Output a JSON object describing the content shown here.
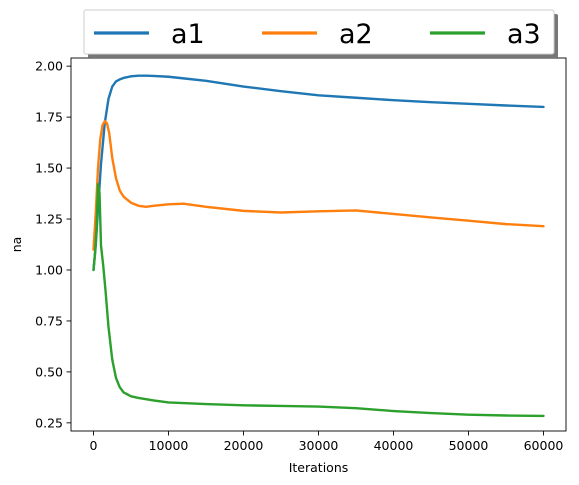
{
  "chart_data": {
    "type": "line",
    "xlabel": "Iterations",
    "ylabel": "na",
    "xlim": [
      -3000,
      63000
    ],
    "ylim": [
      0.21,
      2.04
    ],
    "xticks": [
      0,
      10000,
      20000,
      30000,
      40000,
      50000,
      60000
    ],
    "xtick_labels": [
      "0",
      "10000",
      "20000",
      "30000",
      "40000",
      "50000",
      "60000"
    ],
    "yticks": [
      0.25,
      0.5,
      0.75,
      1.0,
      1.25,
      1.5,
      1.75,
      2.0
    ],
    "ytick_labels": [
      "0.25",
      "0.50",
      "0.75",
      "1.00",
      "1.25",
      "1.50",
      "1.75",
      "2.00"
    ],
    "grid": false,
    "legend_position": "top, above plot, 3 columns",
    "series": [
      {
        "name": "a1",
        "color": "#1f77b4",
        "x": [
          0,
          300,
          600,
          1000,
          1500,
          2000,
          2500,
          3000,
          3500,
          4000,
          5000,
          6000,
          7000,
          8000,
          10000,
          12000,
          15000,
          20000,
          25000,
          30000,
          35000,
          40000,
          45000,
          50000,
          55000,
          60000
        ],
        "y": [
          1.0,
          1.12,
          1.3,
          1.52,
          1.72,
          1.84,
          1.9,
          1.925,
          1.935,
          1.942,
          1.95,
          1.953,
          1.953,
          1.952,
          1.948,
          1.94,
          1.928,
          1.9,
          1.877,
          1.857,
          1.845,
          1.833,
          1.823,
          1.815,
          1.807,
          1.8
        ]
      },
      {
        "name": "a2",
        "color": "#ff7f0e",
        "x": [
          0,
          300,
          600,
          900,
          1200,
          1500,
          1800,
          2100,
          2500,
          3000,
          3500,
          4000,
          5000,
          6000,
          7000,
          8000,
          10000,
          12000,
          15000,
          20000,
          25000,
          30000,
          35000,
          40000,
          45000,
          50000,
          55000,
          60000
        ],
        "y": [
          1.1,
          1.28,
          1.5,
          1.64,
          1.71,
          1.73,
          1.72,
          1.67,
          1.55,
          1.45,
          1.39,
          1.36,
          1.33,
          1.315,
          1.31,
          1.315,
          1.322,
          1.325,
          1.31,
          1.29,
          1.282,
          1.288,
          1.292,
          1.275,
          1.258,
          1.242,
          1.225,
          1.215
        ]
      },
      {
        "name": "a3",
        "color": "#2ca02c",
        "x": [
          0,
          200,
          400,
          600,
          800,
          1000,
          1300,
          1600,
          2000,
          2500,
          3000,
          3500,
          4000,
          5000,
          6000,
          8000,
          10000,
          15000,
          20000,
          25000,
          30000,
          35000,
          40000,
          45000,
          50000,
          55000,
          60000
        ],
        "y": [
          1.0,
          1.08,
          1.2,
          1.42,
          1.38,
          1.12,
          1.02,
          0.9,
          0.72,
          0.56,
          0.47,
          0.425,
          0.4,
          0.38,
          0.372,
          0.36,
          0.35,
          0.342,
          0.336,
          0.333,
          0.33,
          0.322,
          0.308,
          0.298,
          0.29,
          0.286,
          0.284
        ]
      }
    ]
  }
}
